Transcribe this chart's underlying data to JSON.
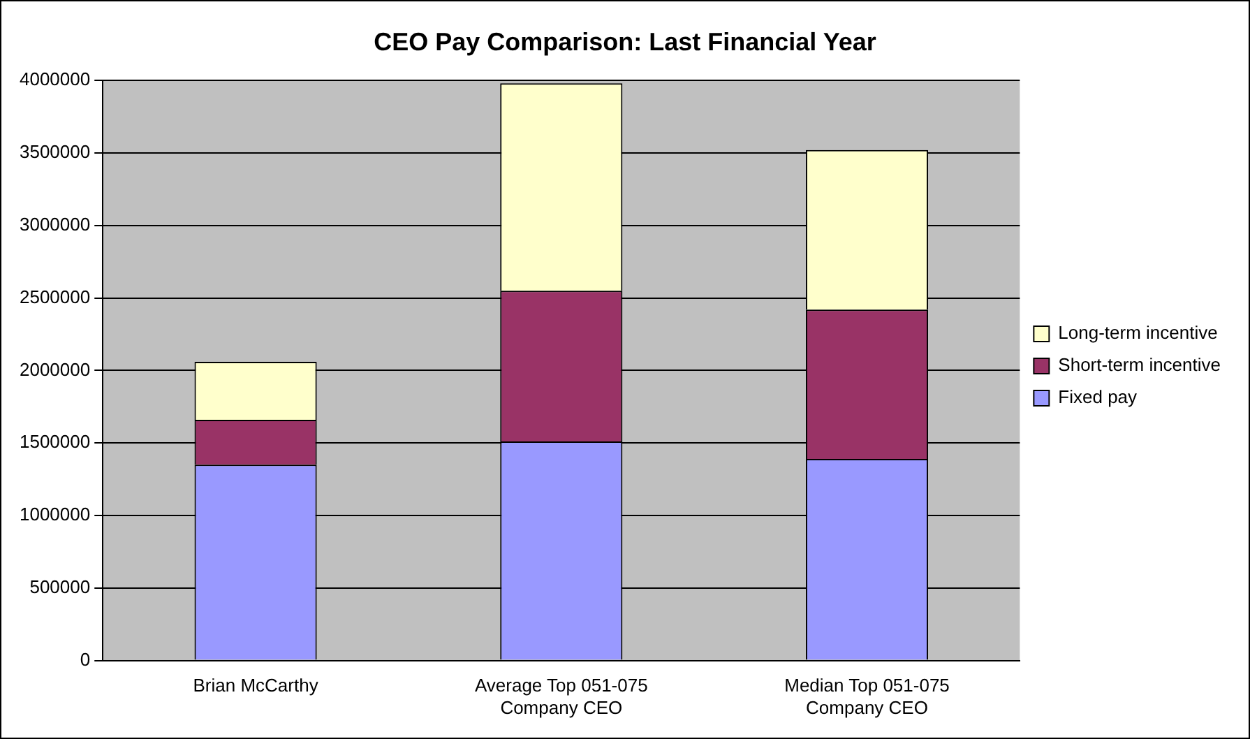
{
  "chart_data": {
    "type": "bar",
    "title": "CEO Pay Comparison: Last Financial Year",
    "categories": [
      "Brian McCarthy",
      "Average Top 051-075 Company CEO",
      "Median Top 051-075 Company CEO"
    ],
    "stacked": true,
    "series": [
      {
        "name": "Fixed pay",
        "color": "#9999ff",
        "values": [
          1350000,
          1510000,
          1390000
        ]
      },
      {
        "name": "Short-term incentive",
        "color": "#993366",
        "values": [
          310000,
          1040000,
          1030000
        ]
      },
      {
        "name": "Long-term incentive",
        "color": "#ffffcc",
        "values": [
          400000,
          1430000,
          1100000
        ]
      }
    ],
    "ylim": [
      0,
      4000000
    ],
    "yticks": [
      0,
      500000,
      1000000,
      1500000,
      2000000,
      2500000,
      3000000,
      3500000,
      4000000
    ],
    "grid": "y",
    "legend": "right"
  }
}
